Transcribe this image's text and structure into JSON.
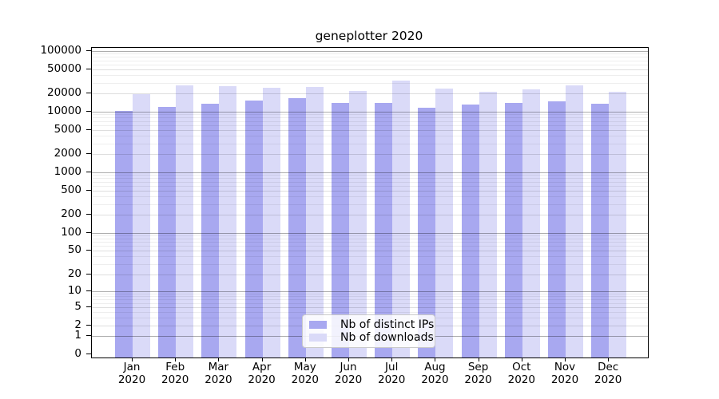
{
  "chart_data": {
    "type": "bar",
    "title": "geneplotter 2020",
    "year_label": "2020",
    "categories": [
      "Jan",
      "Feb",
      "Mar",
      "Apr",
      "May",
      "Jun",
      "Jul",
      "Aug",
      "Sep",
      "Oct",
      "Nov",
      "Dec"
    ],
    "series": [
      {
        "name": "Nb of distinct IPs",
        "color": "#a8a8f0",
        "values": [
          10300,
          12000,
          13700,
          15400,
          16700,
          14000,
          13800,
          11600,
          13100,
          14000,
          15000,
          13600
        ]
      },
      {
        "name": "Nb of downloads",
        "color": "#dadaf8",
        "values": [
          19700,
          26800,
          26000,
          25000,
          25500,
          21700,
          32300,
          23900,
          21500,
          23500,
          26800,
          21300
        ]
      }
    ],
    "yscale": "log1p",
    "ylim": [
      0,
      100000
    ],
    "yticks": [
      0,
      1,
      2,
      5,
      10,
      20,
      50,
      100,
      200,
      500,
      1000,
      2000,
      5000,
      10000,
      20000,
      50000,
      100000
    ],
    "grid": true,
    "legend": {
      "position": "bottom-center",
      "labels": [
        "Nb of distinct IPs",
        "Nb of downloads"
      ]
    }
  }
}
